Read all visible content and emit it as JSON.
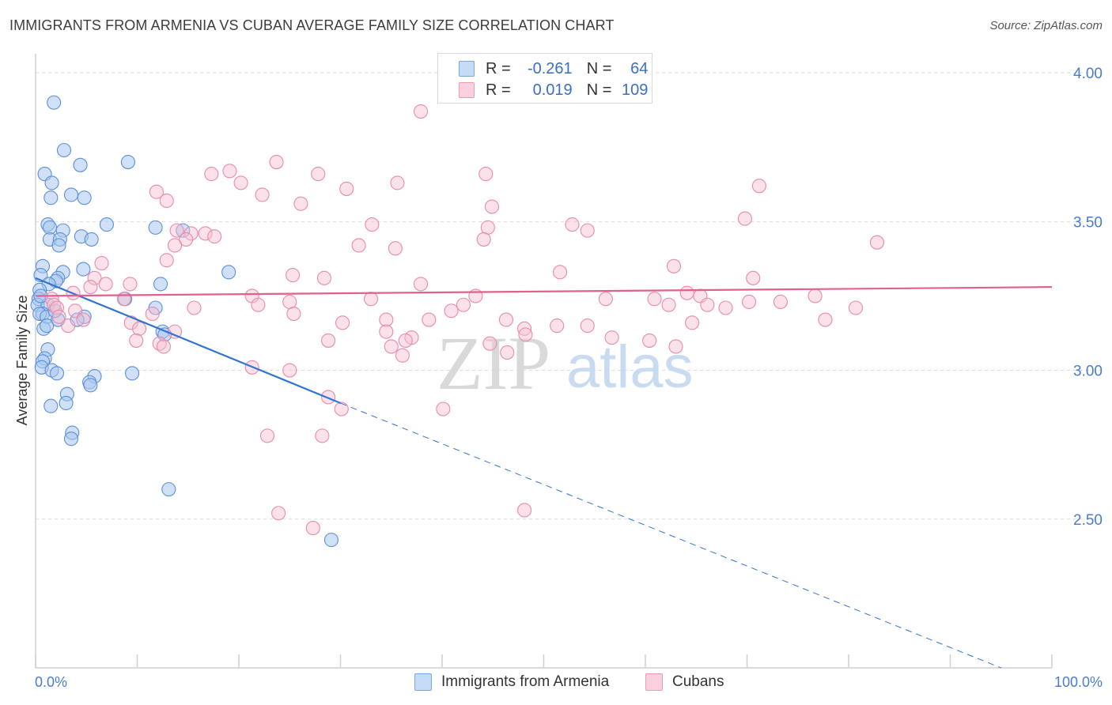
{
  "header": {
    "title": "IMMIGRANTS FROM ARMENIA VS CUBAN AVERAGE FAMILY SIZE CORRELATION CHART",
    "source": "Source: ZipAtlas.com"
  },
  "legend": {
    "rows": [
      {
        "r_label": "R =",
        "r_value": "-0.261",
        "n_label": "N =",
        "n_value": "64"
      },
      {
        "r_label": "R =",
        "r_value": "0.019",
        "n_label": "N =",
        "n_value": "109"
      }
    ]
  },
  "watermark": {
    "zip": "ZIP",
    "atlas": "atlas"
  },
  "colors": {
    "blue_fill": "#a9c8f0",
    "blue_stroke": "#5b8fd6",
    "blue_line": "#2f74d0",
    "pink_fill": "#f6bfd0",
    "pink_stroke": "#e88aa8",
    "pink_line": "#e0608e",
    "axis_text": "#4a7cc9",
    "grid": "#dcdcdc"
  },
  "chart_data": {
    "type": "scatter",
    "title": "IMMIGRANTS FROM ARMENIA VS CUBAN AVERAGE FAMILY SIZE CORRELATION CHART",
    "xlabel": "",
    "ylabel": "Average Family Size",
    "xlim": [
      0,
      100
    ],
    "ylim": [
      2.0,
      4.08
    ],
    "x_tick_labels": [
      "0.0%",
      "100.0%"
    ],
    "y_ticks": [
      2.5,
      3.0,
      3.5,
      4.0
    ],
    "y_tick_labels": [
      "2.50",
      "3.00",
      "3.50",
      "4.00"
    ],
    "grid": true,
    "legend_position": "bottom",
    "series": [
      {
        "name": "Immigrants from Armenia",
        "color": "#a9c8f0",
        "r": -0.261,
        "n": 64,
        "trend": {
          "x0": 0,
          "y0": 3.31,
          "x1": 30,
          "y1": 2.89,
          "dashed_to_x": 95,
          "dashed_to_y": 2.0
        },
        "points": [
          [
            1.8,
            3.9
          ],
          [
            2.8,
            3.74
          ],
          [
            4.4,
            3.69
          ],
          [
            9.1,
            3.7
          ],
          [
            0.9,
            3.66
          ],
          [
            1.6,
            3.63
          ],
          [
            3.5,
            3.59
          ],
          [
            4.8,
            3.58
          ],
          [
            1.5,
            3.58
          ],
          [
            1.2,
            3.49
          ],
          [
            1.4,
            3.48
          ],
          [
            2.7,
            3.47
          ],
          [
            7.0,
            3.49
          ],
          [
            11.8,
            3.48
          ],
          [
            14.5,
            3.47
          ],
          [
            4.5,
            3.45
          ],
          [
            5.5,
            3.44
          ],
          [
            1.4,
            3.44
          ],
          [
            2.4,
            3.44
          ],
          [
            2.3,
            3.42
          ],
          [
            0.7,
            3.35
          ],
          [
            2.7,
            3.33
          ],
          [
            4.7,
            3.34
          ],
          [
            19.0,
            3.33
          ],
          [
            0.5,
            3.32
          ],
          [
            2.2,
            3.31
          ],
          [
            2.0,
            3.3
          ],
          [
            1.3,
            3.29
          ],
          [
            12.3,
            3.29
          ],
          [
            0.4,
            3.27
          ],
          [
            0.3,
            3.24
          ],
          [
            8.8,
            3.24
          ],
          [
            0.2,
            3.22
          ],
          [
            1.2,
            3.22
          ],
          [
            11.8,
            3.21
          ],
          [
            0.7,
            3.19
          ],
          [
            0.4,
            3.19
          ],
          [
            1.1,
            3.18
          ],
          [
            4.8,
            3.18
          ],
          [
            4.1,
            3.17
          ],
          [
            2.2,
            3.17
          ],
          [
            0.8,
            3.14
          ],
          [
            1.1,
            3.15
          ],
          [
            12.5,
            3.13
          ],
          [
            12.7,
            3.12
          ],
          [
            1.2,
            3.07
          ],
          [
            0.9,
            3.04
          ],
          [
            0.7,
            3.03
          ],
          [
            0.6,
            3.01
          ],
          [
            1.6,
            3.0
          ],
          [
            2.1,
            2.99
          ],
          [
            9.5,
            2.99
          ],
          [
            5.8,
            2.98
          ],
          [
            5.3,
            2.96
          ],
          [
            5.4,
            2.95
          ],
          [
            3.1,
            2.92
          ],
          [
            3.0,
            2.89
          ],
          [
            1.5,
            2.88
          ],
          [
            3.6,
            2.79
          ],
          [
            3.5,
            2.77
          ],
          [
            13.1,
            2.6
          ],
          [
            29.1,
            2.43
          ],
          [
            0.5,
            3.25
          ],
          [
            1.9,
            3.2
          ]
        ]
      },
      {
        "name": "Cubans",
        "color": "#f6bfd0",
        "r": 0.019,
        "n": 109,
        "trend": {
          "x0": 0,
          "y0": 3.25,
          "x1": 100,
          "y1": 3.28
        },
        "points": [
          [
            37.9,
            3.87
          ],
          [
            23.7,
            3.7
          ],
          [
            44.3,
            3.66
          ],
          [
            17.3,
            3.66
          ],
          [
            19.1,
            3.67
          ],
          [
            27.8,
            3.66
          ],
          [
            35.6,
            3.63
          ],
          [
            20.2,
            3.63
          ],
          [
            71.2,
            3.62
          ],
          [
            30.6,
            3.61
          ],
          [
            11.9,
            3.6
          ],
          [
            22.3,
            3.59
          ],
          [
            12.9,
            3.57
          ],
          [
            26.1,
            3.56
          ],
          [
            44.9,
            3.55
          ],
          [
            69.8,
            3.51
          ],
          [
            33.1,
            3.49
          ],
          [
            52.8,
            3.49
          ],
          [
            44.5,
            3.48
          ],
          [
            13.9,
            3.47
          ],
          [
            54.3,
            3.47
          ],
          [
            15.3,
            3.46
          ],
          [
            16.7,
            3.46
          ],
          [
            17.6,
            3.45
          ],
          [
            14.8,
            3.44
          ],
          [
            44.1,
            3.44
          ],
          [
            82.8,
            3.43
          ],
          [
            31.8,
            3.42
          ],
          [
            13.7,
            3.42
          ],
          [
            35.4,
            3.41
          ],
          [
            12.9,
            3.37
          ],
          [
            6.5,
            3.36
          ],
          [
            62.8,
            3.35
          ],
          [
            51.6,
            3.33
          ],
          [
            25.3,
            3.32
          ],
          [
            28.4,
            3.31
          ],
          [
            70.6,
            3.31
          ],
          [
            5.8,
            3.31
          ],
          [
            9.3,
            3.29
          ],
          [
            6.9,
            3.29
          ],
          [
            37.9,
            3.29
          ],
          [
            5.4,
            3.28
          ],
          [
            64.1,
            3.26
          ],
          [
            3.7,
            3.26
          ],
          [
            43.3,
            3.25
          ],
          [
            76.7,
            3.25
          ],
          [
            21.3,
            3.25
          ],
          [
            65.4,
            3.25
          ],
          [
            8.7,
            3.24
          ],
          [
            33.0,
            3.24
          ],
          [
            60.9,
            3.24
          ],
          [
            56.1,
            3.24
          ],
          [
            1.6,
            3.24
          ],
          [
            25.0,
            3.23
          ],
          [
            70.2,
            3.23
          ],
          [
            73.3,
            3.23
          ],
          [
            21.9,
            3.22
          ],
          [
            66.1,
            3.22
          ],
          [
            62.3,
            3.22
          ],
          [
            1.8,
            3.22
          ],
          [
            2.1,
            3.21
          ],
          [
            15.6,
            3.21
          ],
          [
            67.9,
            3.21
          ],
          [
            80.7,
            3.21
          ],
          [
            3.9,
            3.2
          ],
          [
            11.5,
            3.19
          ],
          [
            40.9,
            3.2
          ],
          [
            25.4,
            3.19
          ],
          [
            2.3,
            3.18
          ],
          [
            34.5,
            3.17
          ],
          [
            4.7,
            3.17
          ],
          [
            46.3,
            3.17
          ],
          [
            38.7,
            3.17
          ],
          [
            9.4,
            3.16
          ],
          [
            30.2,
            3.16
          ],
          [
            64.6,
            3.16
          ],
          [
            3.2,
            3.15
          ],
          [
            51.3,
            3.15
          ],
          [
            54.3,
            3.15
          ],
          [
            48.1,
            3.14
          ],
          [
            77.7,
            3.17
          ],
          [
            10.2,
            3.14
          ],
          [
            13.7,
            3.13
          ],
          [
            56.7,
            3.11
          ],
          [
            37.0,
            3.11
          ],
          [
            9.9,
            3.1
          ],
          [
            12.2,
            3.09
          ],
          [
            48.2,
            3.12
          ],
          [
            28.8,
            3.1
          ],
          [
            44.7,
            3.09
          ],
          [
            60.4,
            3.1
          ],
          [
            35.0,
            3.08
          ],
          [
            46.4,
            3.06
          ],
          [
            12.6,
            3.08
          ],
          [
            36.4,
            3.1
          ],
          [
            34.5,
            3.13
          ],
          [
            21.3,
            3.01
          ],
          [
            25.0,
            3.0
          ],
          [
            22.8,
            2.78
          ],
          [
            28.8,
            2.91
          ],
          [
            30.1,
            2.87
          ],
          [
            40.1,
            2.87
          ],
          [
            28.2,
            2.78
          ],
          [
            48.1,
            2.53
          ],
          [
            23.9,
            2.52
          ],
          [
            27.3,
            2.47
          ],
          [
            63.0,
            3.08
          ],
          [
            36.1,
            3.05
          ],
          [
            42.1,
            3.22
          ]
        ]
      }
    ]
  },
  "bottom_legend": {
    "items": [
      "Immigrants from Armenia",
      "Cubans"
    ]
  }
}
